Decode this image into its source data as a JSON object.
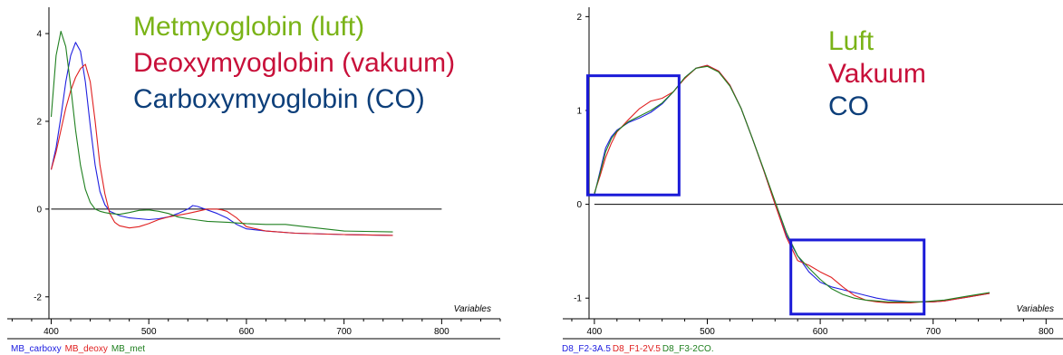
{
  "chart_data": [
    {
      "type": "line",
      "title": "",
      "xlabel": "Variables",
      "ylabel": "",
      "xlim": [
        355,
        860
      ],
      "ylim": [
        -2.5,
        4.6
      ],
      "xticks": [
        "400",
        "500",
        "600",
        "700",
        "800"
      ],
      "yticks": [
        "4",
        "2",
        "0",
        "-2"
      ],
      "zero_line_x": [
        400,
        800
      ],
      "annotations": [
        {
          "text": "Metmyoglobin (luft)",
          "color": "#7ab317"
        },
        {
          "text": "Deoxymyoglobin (vakuum)",
          "color": "#c8103a"
        },
        {
          "text": "Carboxymyoglobin (CO)",
          "color": "#0d3f7a"
        }
      ],
      "legend": [
        {
          "text": "MB_carboxy",
          "color": "#2020e0"
        },
        {
          "text": "MB_deoxy",
          "color": "#e02020"
        },
        {
          "text": "MB_met",
          "color": "#208020"
        }
      ],
      "series": [
        {
          "color": "#2020e0",
          "x": [
            400,
            405,
            410,
            415,
            420,
            425,
            430,
            435,
            440,
            445,
            450,
            455,
            460,
            470,
            480,
            490,
            500,
            510,
            520,
            530,
            540,
            545,
            550,
            560,
            570,
            580,
            590,
            600,
            620,
            650,
            700,
            750
          ],
          "y": [
            0.9,
            1.4,
            2.1,
            2.9,
            3.5,
            3.8,
            3.6,
            2.9,
            1.9,
            1.0,
            0.4,
            0.1,
            -0.05,
            -0.15,
            -0.2,
            -0.22,
            -0.24,
            -0.22,
            -0.18,
            -0.1,
            0.0,
            0.08,
            0.06,
            -0.02,
            -0.1,
            -0.2,
            -0.35,
            -0.45,
            -0.5,
            -0.55,
            -0.58,
            -0.6
          ]
        },
        {
          "color": "#e02020",
          "x": [
            400,
            405,
            410,
            415,
            420,
            425,
            430,
            435,
            440,
            445,
            450,
            455,
            460,
            465,
            470,
            480,
            490,
            500,
            510,
            520,
            530,
            540,
            550,
            560,
            570,
            575,
            580,
            590,
            600,
            620,
            650,
            700,
            750
          ],
          "y": [
            0.9,
            1.3,
            1.8,
            2.3,
            2.7,
            3.0,
            3.2,
            3.3,
            2.9,
            2.0,
            1.0,
            0.35,
            -0.1,
            -0.3,
            -0.38,
            -0.43,
            -0.4,
            -0.33,
            -0.24,
            -0.18,
            -0.14,
            -0.1,
            -0.05,
            0.0,
            0.0,
            -0.02,
            -0.05,
            -0.2,
            -0.4,
            -0.5,
            -0.55,
            -0.58,
            -0.6
          ]
        },
        {
          "color": "#208020",
          "x": [
            400,
            405,
            410,
            415,
            420,
            425,
            430,
            435,
            440,
            445,
            450,
            455,
            460,
            470,
            480,
            490,
            500,
            510,
            520,
            530,
            540,
            550,
            560,
            580,
            600,
            620,
            640,
            660,
            700,
            750
          ],
          "y": [
            2.1,
            3.5,
            4.05,
            3.7,
            2.8,
            1.8,
            1.0,
            0.45,
            0.15,
            0.0,
            -0.05,
            -0.08,
            -0.1,
            -0.12,
            -0.08,
            -0.03,
            -0.02,
            -0.05,
            -0.1,
            -0.18,
            -0.22,
            -0.25,
            -0.28,
            -0.3,
            -0.33,
            -0.35,
            -0.35,
            -0.4,
            -0.5,
            -0.52
          ]
        }
      ]
    },
    {
      "type": "line",
      "title": "",
      "xlabel": "Variables",
      "ylabel": "",
      "xlim": [
        372,
        815
      ],
      "ylim": [
        -1.22,
        2.1
      ],
      "xticks": [
        "400",
        "500",
        "600",
        "700",
        "800"
      ],
      "yticks": [
        "2",
        "1",
        "0",
        "-1"
      ],
      "zero_line_x": [
        400,
        815
      ],
      "annotations": [
        {
          "text": "Luft",
          "color": "#7ab317"
        },
        {
          "text": "Vakuum",
          "color": "#c8103a"
        },
        {
          "text": "CO",
          "color": "#0d3f7a"
        }
      ],
      "boxes": [
        {
          "x": [
            394,
            475
          ],
          "y": [
            0.1,
            1.37
          ]
        },
        {
          "x": [
            574,
            692
          ],
          "y": [
            -0.38,
            -1.17
          ]
        }
      ],
      "legend": [
        {
          "text": "D8_F2-3A.5",
          "color": "#2020e0"
        },
        {
          "text": "D8_F1-2V.5",
          "color": "#e02020"
        },
        {
          "text": "D8_F3-2CO.",
          "color": "#208020"
        }
      ],
      "series": [
        {
          "color": "#2020e0",
          "x": [
            400,
            405,
            410,
            415,
            420,
            430,
            440,
            450,
            460,
            470,
            480,
            490,
            500,
            510,
            520,
            530,
            540,
            550,
            560,
            570,
            580,
            590,
            600,
            610,
            620,
            630,
            640,
            650,
            660,
            670,
            680,
            690,
            700,
            710,
            720,
            730,
            740,
            750
          ],
          "y": [
            0.1,
            0.35,
            0.6,
            0.72,
            0.79,
            0.87,
            0.92,
            0.98,
            1.07,
            1.2,
            1.35,
            1.45,
            1.48,
            1.42,
            1.27,
            1.02,
            0.7,
            0.36,
            0.0,
            -0.33,
            -0.55,
            -0.72,
            -0.83,
            -0.88,
            -0.91,
            -0.94,
            -0.97,
            -1.0,
            -1.02,
            -1.03,
            -1.04,
            -1.04,
            -1.04,
            -1.03,
            -1.01,
            -0.99,
            -0.97,
            -0.95
          ]
        },
        {
          "color": "#e02020",
          "x": [
            400,
            405,
            410,
            415,
            420,
            430,
            440,
            450,
            460,
            470,
            480,
            490,
            500,
            510,
            520,
            530,
            540,
            550,
            560,
            570,
            580,
            590,
            600,
            610,
            620,
            630,
            640,
            650,
            660,
            670,
            680,
            690,
            700,
            710,
            720,
            730,
            740,
            750
          ],
          "y": [
            0.12,
            0.3,
            0.5,
            0.65,
            0.77,
            0.9,
            1.02,
            1.1,
            1.13,
            1.2,
            1.34,
            1.45,
            1.48,
            1.42,
            1.27,
            1.02,
            0.7,
            0.36,
            0.0,
            -0.35,
            -0.6,
            -0.65,
            -0.72,
            -0.78,
            -0.88,
            -0.97,
            -1.02,
            -1.04,
            -1.05,
            -1.05,
            -1.05,
            -1.04,
            -1.04,
            -1.03,
            -1.01,
            -0.99,
            -0.97,
            -0.95
          ]
        },
        {
          "color": "#208020",
          "x": [
            400,
            405,
            410,
            415,
            420,
            430,
            440,
            450,
            460,
            470,
            480,
            490,
            500,
            510,
            520,
            530,
            540,
            550,
            560,
            570,
            580,
            590,
            600,
            610,
            620,
            630,
            640,
            650,
            660,
            670,
            680,
            690,
            700,
            710,
            720,
            730,
            740,
            750
          ],
          "y": [
            0.11,
            0.33,
            0.56,
            0.7,
            0.78,
            0.88,
            0.94,
            1.0,
            1.08,
            1.2,
            1.35,
            1.45,
            1.47,
            1.41,
            1.26,
            1.02,
            0.7,
            0.37,
            0.03,
            -0.3,
            -0.55,
            -0.68,
            -0.8,
            -0.9,
            -0.96,
            -1.0,
            -1.02,
            -1.03,
            -1.04,
            -1.04,
            -1.04,
            -1.04,
            -1.03,
            -1.02,
            -1.0,
            -0.98,
            -0.96,
            -0.94
          ]
        }
      ]
    }
  ]
}
